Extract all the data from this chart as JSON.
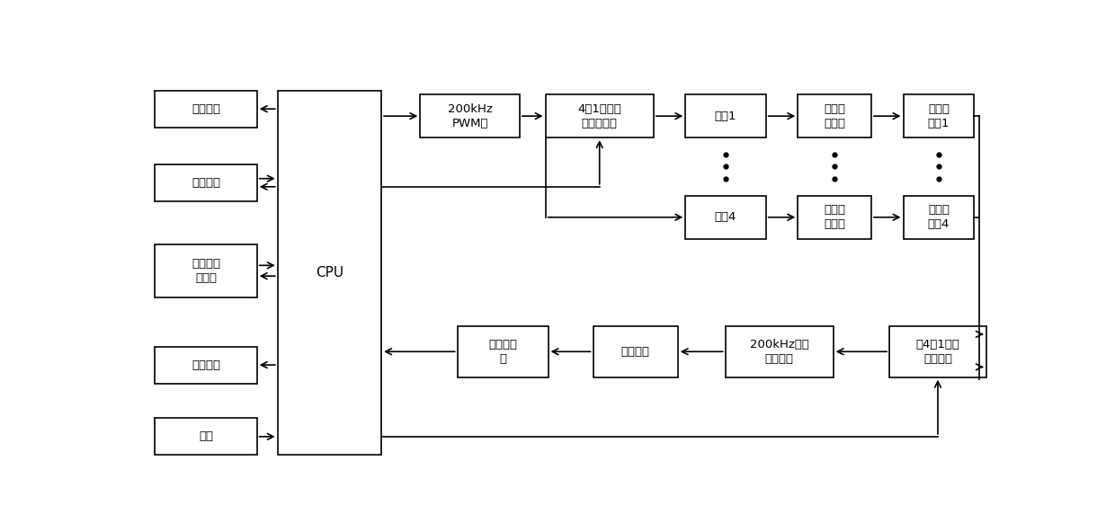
{
  "bg_color": "#ffffff",
  "box_edge_color": "#000000",
  "text_color": "#000000",
  "lw": 1.2,
  "boxes": {
    "数据通信": [
      0.018,
      0.845,
      0.118,
      0.09
    ],
    "温度补偿": [
      0.018,
      0.665,
      0.118,
      0.09
    ],
    "陀螺仪平\n衡装置": [
      0.018,
      0.43,
      0.118,
      0.13
    ],
    "数据存储": [
      0.018,
      0.22,
      0.118,
      0.09
    ],
    "电源": [
      0.018,
      0.045,
      0.118,
      0.09
    ],
    "CPU": [
      0.16,
      0.045,
      0.12,
      0.89
    ],
    "200kHz\nPWM波": [
      0.325,
      0.82,
      0.115,
      0.105
    ],
    "4选1模拟开\n关分时选择": [
      0.47,
      0.82,
      0.125,
      0.105
    ],
    "通道1": [
      0.632,
      0.82,
      0.093,
      0.105
    ],
    "通道4": [
      0.632,
      0.573,
      0.093,
      0.105
    ],
    "发射驱\n动电路_1": [
      0.762,
      0.82,
      0.085,
      0.105
    ],
    "发射驱\n动电路_4": [
      0.762,
      0.573,
      0.085,
      0.105
    ],
    "超声波\n探头1": [
      0.884,
      0.82,
      0.082,
      0.105
    ],
    "超声波\n探头4": [
      0.884,
      0.573,
      0.082,
      0.105
    ],
    "双4选1模拟\n开关接收": [
      0.868,
      0.235,
      0.112,
      0.125
    ],
    "200kHz窄带\n滤波电路": [
      0.678,
      0.235,
      0.125,
      0.125
    ],
    "后级放大": [
      0.525,
      0.235,
      0.098,
      0.125
    ],
    "电压比较\n器": [
      0.368,
      0.235,
      0.105,
      0.125
    ]
  }
}
